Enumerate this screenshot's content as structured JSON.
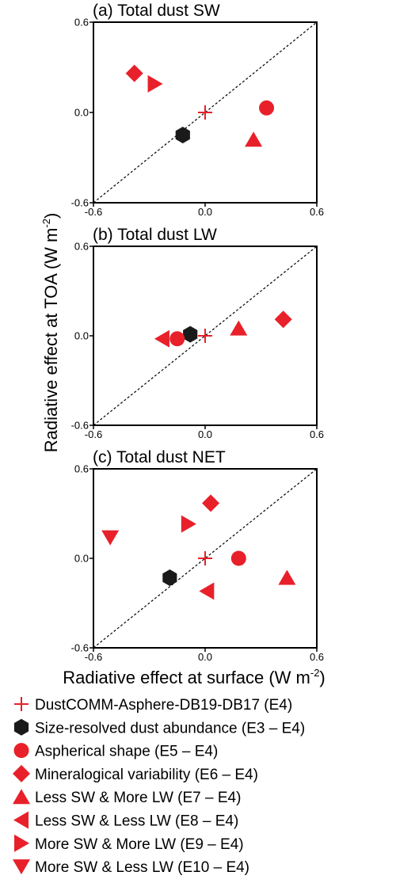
{
  "figure": {
    "ylabel": "Radiative effect at TOA (W m",
    "ylabel_sup": "-2",
    "ylabel_end": ")",
    "xlabel": "Radiative effect at surface (W m",
    "xlabel_sup": "-2",
    "xlabel_end": ")"
  },
  "colors": {
    "red": "#e8202a",
    "black": "#1a1a1a"
  },
  "experiments": [
    {
      "key": "E4",
      "label": "DustCOMM-Asphere-DB19-DB17 (E4)",
      "marker": "plus",
      "color": "#e8202a"
    },
    {
      "key": "E3-E4",
      "label": "Size-resolved dust abundance (E3 – E4)",
      "marker": "hexagon",
      "color": "#1a1a1a"
    },
    {
      "key": "E5-E4",
      "label": "Aspherical shape (E5 – E4)",
      "marker": "circle",
      "color": "#e8202a"
    },
    {
      "key": "E6-E4",
      "label": "Mineralogical variability (E6 – E4)",
      "marker": "diamond",
      "color": "#e8202a"
    },
    {
      "key": "E7-E4",
      "label": "Less SW & More LW (E7 – E4)",
      "marker": "triangle-up",
      "color": "#e8202a"
    },
    {
      "key": "E8-E4",
      "label": "Less SW & Less LW (E8 – E4)",
      "marker": "triangle-left",
      "color": "#e8202a"
    },
    {
      "key": "E9-E4",
      "label": "More SW & More LW (E9 – E4)",
      "marker": "triangle-right",
      "color": "#e8202a"
    },
    {
      "key": "E10-E4",
      "label": "More SW & Less LW (E10 – E4)",
      "marker": "triangle-down",
      "color": "#e8202a"
    }
  ],
  "chart_data": [
    {
      "type": "scatter",
      "title": "(a) Total dust SW",
      "xlim": [
        -0.6,
        0.6
      ],
      "ylim": [
        -0.6,
        0.6
      ],
      "xticks": [
        "-0.6",
        "0.0",
        "0.6"
      ],
      "yticks": [
        "-0.6",
        "0.0",
        "0.6"
      ],
      "one_to_one_line": true,
      "grid": false,
      "points": [
        {
          "key": "E4",
          "x": 0.0,
          "y": 0.0
        },
        {
          "key": "E3-E4",
          "x": -0.12,
          "y": -0.15
        },
        {
          "key": "E5-E4",
          "x": 0.33,
          "y": 0.03
        },
        {
          "key": "E6-E4",
          "x": -0.38,
          "y": 0.26
        },
        {
          "key": "E7-E4",
          "x": 0.26,
          "y": -0.18
        },
        {
          "key": "E9-E4",
          "x": -0.27,
          "y": 0.19
        }
      ]
    },
    {
      "type": "scatter",
      "title": "(b) Total dust LW",
      "xlim": [
        -0.6,
        0.6
      ],
      "ylim": [
        -0.6,
        0.6
      ],
      "xticks": [
        "-0.6",
        "0.0",
        "0.6"
      ],
      "yticks": [
        "-0.6",
        "0.0",
        "0.6"
      ],
      "one_to_one_line": true,
      "grid": false,
      "points": [
        {
          "key": "E4",
          "x": 0.0,
          "y": 0.0
        },
        {
          "key": "E3-E4",
          "x": -0.08,
          "y": 0.01
        },
        {
          "key": "E5-E4",
          "x": -0.15,
          "y": -0.02
        },
        {
          "key": "E6-E4",
          "x": 0.42,
          "y": 0.11
        },
        {
          "key": "E7-E4",
          "x": 0.18,
          "y": 0.05
        },
        {
          "key": "E8-E4",
          "x": -0.23,
          "y": -0.02
        }
      ]
    },
    {
      "type": "scatter",
      "title": "(c) Total dust NET",
      "xlim": [
        -0.6,
        0.6
      ],
      "ylim": [
        -0.6,
        0.6
      ],
      "xticks": [
        "-0.6",
        "0.0",
        "0.6"
      ],
      "yticks": [
        "-0.6",
        "0.0",
        "0.6"
      ],
      "one_to_one_line": true,
      "grid": false,
      "points": [
        {
          "key": "E4",
          "x": 0.0,
          "y": 0.0
        },
        {
          "key": "E3-E4",
          "x": -0.19,
          "y": -0.13
        },
        {
          "key": "E5-E4",
          "x": 0.18,
          "y": 0.0
        },
        {
          "key": "E6-E4",
          "x": 0.03,
          "y": 0.37
        },
        {
          "key": "E7-E4",
          "x": 0.44,
          "y": -0.13
        },
        {
          "key": "E8-E4",
          "x": 0.01,
          "y": -0.22
        },
        {
          "key": "E9-E4",
          "x": -0.09,
          "y": 0.23
        },
        {
          "key": "E10-E4",
          "x": -0.51,
          "y": 0.14
        }
      ]
    }
  ]
}
